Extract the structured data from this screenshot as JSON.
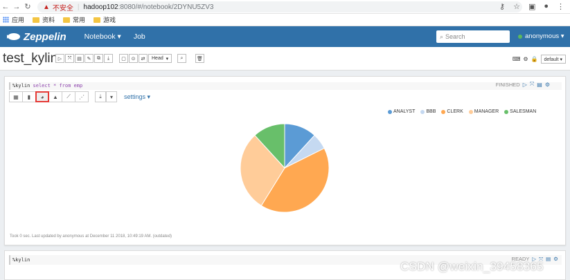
{
  "browser": {
    "url_warning": "不安全",
    "url_host": "hadoop102",
    "url_rest": ":8080/#/notebook/2DYNU5ZV3",
    "bookmarks": [
      "应用",
      "资料",
      "常用",
      "游戏"
    ]
  },
  "header": {
    "logo": "Zeppelin",
    "nav": [
      "Notebook ▾",
      "Job"
    ],
    "search_placeholder": "Search",
    "user": "anonymous ▾"
  },
  "notebook": {
    "title": "test_kylin",
    "head_select": "Head",
    "interpreter_select": "default ▾"
  },
  "paragraph1": {
    "code_magic": "%kylin",
    "code_sql": "select * from emp",
    "status": "FINISHED",
    "settings_label": "settings ▾",
    "footnote": "Took 0 sec. Last updated by anonymous at December 11 2018, 10:49:19 AM. (outdated)"
  },
  "paragraph2": {
    "code": "%kylin",
    "status": "READY"
  },
  "watermark": "CSDN @weixin_39458365",
  "chart_data": {
    "type": "pie",
    "series": [
      {
        "name": "ANALYST",
        "value": 2,
        "color": "#5b9bd5"
      },
      {
        "name": "BBB",
        "value": 1,
        "color": "#c5d9f1"
      },
      {
        "name": "CLERK",
        "value": 7,
        "color": "#ffa851"
      },
      {
        "name": "MANAGER",
        "value": 5,
        "color": "#ffcc99"
      },
      {
        "name": "SALESMAN",
        "value": 2,
        "color": "#68bf6a"
      }
    ],
    "legend_position": "top-right"
  }
}
